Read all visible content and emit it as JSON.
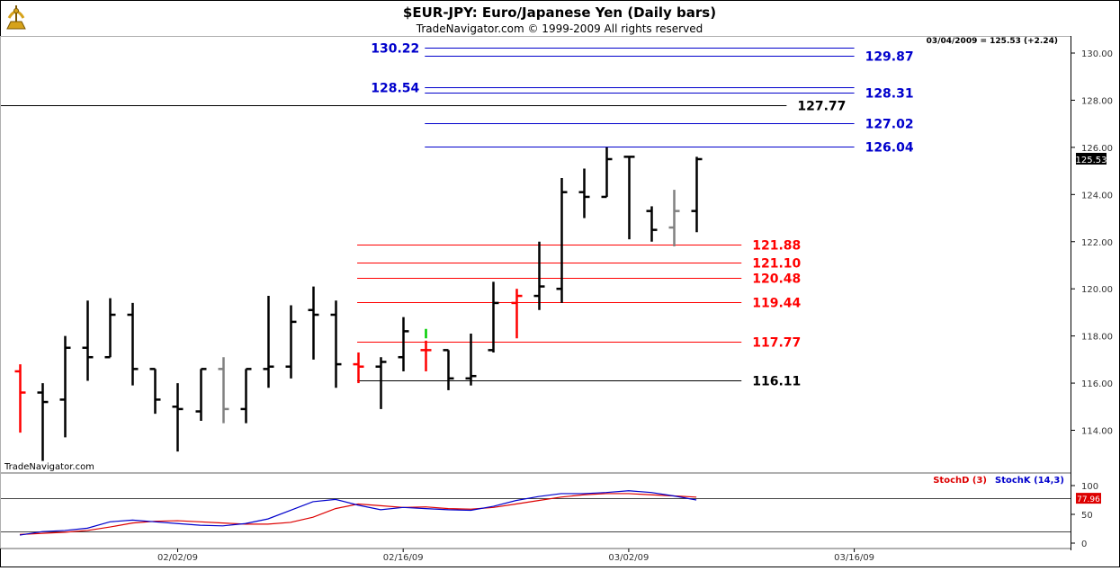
{
  "header": {
    "title": "$EUR-JPY:  Euro/Japanese Yen  (Daily bars)",
    "copyright": "TradeNavigator.com © 1999-2009 All rights reserved",
    "quote": "03/04/2009 = 125.53 (+2.24)",
    "watermark": "TradeNavigator.com"
  },
  "colors": {
    "up_bar": "#000000",
    "down_bar": "#000000",
    "red_bar": "#ff0000",
    "gray_bar": "#808080",
    "green_tick": "#00cc00",
    "blue_level": "#0000cc",
    "red_level": "#ff0000",
    "black_level": "#000000",
    "stoch_d": "#dd0000",
    "stoch_k": "#0000cc"
  },
  "chart_data": {
    "type": "ohlc",
    "title": "$EUR-JPY:  Euro/Japanese Yen  (Daily bars)",
    "ylim": [
      112.6,
      131.0
    ],
    "y_ticks": [
      "130.00",
      "128.00",
      "126.00",
      "124.00",
      "122.00",
      "120.00",
      "118.00",
      "116.00",
      "114.00"
    ],
    "x_ticks": [
      {
        "label": "02/02/09",
        "bar": 7
      },
      {
        "label": "02/16/09",
        "bar": 17
      },
      {
        "label": "03/02/09",
        "bar": 27
      },
      {
        "label": "03/16/09",
        "bar": 37
      }
    ],
    "last_price_label": "125.53",
    "bars": [
      {
        "o": 116.5,
        "h": 116.8,
        "l": 113.9,
        "c": 115.6,
        "color": "red"
      },
      {
        "o": 115.6,
        "h": 116.0,
        "l": 112.7,
        "c": 115.2,
        "color": "black"
      },
      {
        "o": 115.3,
        "h": 118.0,
        "l": 113.7,
        "c": 117.5,
        "color": "black"
      },
      {
        "o": 117.5,
        "h": 119.5,
        "l": 116.1,
        "c": 117.1,
        "color": "black"
      },
      {
        "o": 117.1,
        "h": 119.6,
        "l": 117.1,
        "c": 118.9,
        "color": "black"
      },
      {
        "o": 118.9,
        "h": 119.4,
        "l": 115.9,
        "c": 116.6,
        "color": "black"
      },
      {
        "o": 116.6,
        "h": 116.6,
        "l": 114.7,
        "c": 115.3,
        "color": "black"
      },
      {
        "o": 115.0,
        "h": 116.0,
        "l": 113.1,
        "c": 114.9,
        "color": "black"
      },
      {
        "o": 114.8,
        "h": 116.6,
        "l": 114.4,
        "c": 116.6,
        "color": "black"
      },
      {
        "o": 116.6,
        "h": 117.1,
        "l": 114.3,
        "c": 114.9,
        "color": "gray"
      },
      {
        "o": 114.9,
        "h": 116.6,
        "l": 114.3,
        "c": 116.6,
        "color": "black"
      },
      {
        "o": 116.6,
        "h": 119.7,
        "l": 115.8,
        "c": 116.7,
        "color": "black"
      },
      {
        "o": 116.7,
        "h": 119.3,
        "l": 116.2,
        "c": 118.6,
        "color": "black"
      },
      {
        "o": 119.1,
        "h": 120.1,
        "l": 117.0,
        "c": 118.9,
        "color": "black"
      },
      {
        "o": 118.9,
        "h": 119.5,
        "l": 115.8,
        "c": 116.8,
        "color": "black"
      },
      {
        "o": 116.8,
        "h": 117.3,
        "l": 116.0,
        "c": 116.7,
        "color": "red"
      },
      {
        "o": 116.7,
        "h": 117.1,
        "l": 114.9,
        "c": 116.9,
        "color": "black"
      },
      {
        "o": 117.1,
        "h": 118.8,
        "l": 116.5,
        "c": 118.2,
        "color": "black"
      },
      {
        "o": 117.4,
        "h": 117.8,
        "l": 116.5,
        "c": 117.4,
        "color": "red",
        "green_tick": 118.3
      },
      {
        "o": 117.4,
        "h": 117.4,
        "l": 115.7,
        "c": 116.2,
        "color": "black"
      },
      {
        "o": 116.2,
        "h": 118.1,
        "l": 115.9,
        "c": 116.3,
        "color": "black"
      },
      {
        "o": 117.4,
        "h": 120.3,
        "l": 117.3,
        "c": 119.4,
        "color": "black"
      },
      {
        "o": 119.4,
        "h": 120.0,
        "l": 117.9,
        "c": 119.7,
        "color": "red"
      },
      {
        "o": 119.7,
        "h": 122.0,
        "l": 119.1,
        "c": 120.1,
        "color": "black"
      },
      {
        "o": 120.0,
        "h": 124.7,
        "l": 119.4,
        "c": 124.1,
        "color": "black"
      },
      {
        "o": 124.1,
        "h": 125.1,
        "l": 123.0,
        "c": 123.9,
        "color": "black"
      },
      {
        "o": 123.9,
        "h": 126.0,
        "l": 123.9,
        "c": 125.5,
        "color": "black"
      },
      {
        "o": 125.6,
        "h": 125.6,
        "l": 122.1,
        "c": 125.6,
        "color": "black"
      },
      {
        "o": 123.3,
        "h": 123.5,
        "l": 122.0,
        "c": 122.5,
        "color": "black",
        "green_tick": 123.5
      },
      {
        "o": 122.6,
        "h": 124.2,
        "l": 121.8,
        "c": 123.3,
        "color": "gray"
      },
      {
        "o": 123.3,
        "h": 125.6,
        "l": 122.4,
        "c": 125.5,
        "color": "black"
      }
    ],
    "levels": [
      {
        "value": 129.87,
        "label": "129.87",
        "color": "blue",
        "bar_from": 18,
        "bar_to": 37
      },
      {
        "value": 128.31,
        "label": "128.31",
        "color": "blue",
        "bar_from": 18,
        "bar_to": 37
      },
      {
        "value": 127.02,
        "label": "127.02",
        "color": "blue",
        "bar_from": 18,
        "bar_to": 37
      },
      {
        "value": 126.04,
        "label": "126.04",
        "color": "blue",
        "bar_from": 18,
        "bar_to": 37
      },
      {
        "value": 130.22,
        "label": "130.22",
        "color": "blue",
        "bar_from": 18,
        "bar_to": 37,
        "label_left": true
      },
      {
        "value": 128.54,
        "label": "128.54",
        "color": "blue",
        "bar_from": 18,
        "bar_to": 37,
        "label_left": true
      },
      {
        "value": 127.77,
        "label": "127.77",
        "color": "black",
        "bar_from": -1,
        "bar_to": 34
      },
      {
        "value": 121.88,
        "label": "121.88",
        "color": "red",
        "bar_from": 15,
        "bar_to": 32
      },
      {
        "value": 121.1,
        "label": "121.10",
        "color": "red",
        "bar_from": 15,
        "bar_to": 32
      },
      {
        "value": 120.48,
        "label": "120.48",
        "color": "red",
        "bar_from": 15,
        "bar_to": 32
      },
      {
        "value": 119.44,
        "label": "119.44",
        "color": "red",
        "bar_from": 15,
        "bar_to": 32
      },
      {
        "value": 117.77,
        "label": "117.77",
        "color": "red",
        "bar_from": 15,
        "bar_to": 32
      },
      {
        "value": 116.11,
        "label": "116.11",
        "color": "black",
        "bar_from": 15,
        "bar_to": 32
      }
    ],
    "stochastic": {
      "ylim": [
        -10,
        110
      ],
      "y_ticks": [
        "100",
        "50",
        "0"
      ],
      "ref_lines": [
        77.96,
        20
      ],
      "last_value_label": "77.96",
      "series": [
        {
          "name": "StochD (3)",
          "color": "red",
          "values": [
            15,
            17,
            19,
            22,
            28,
            35,
            38,
            39,
            37,
            35,
            33,
            33,
            36,
            45,
            60,
            68,
            65,
            62,
            63,
            60,
            59,
            62,
            68,
            74,
            80,
            84,
            86,
            86,
            84,
            82,
            80
          ]
        },
        {
          "name": "StochK (14,3)",
          "color": "blue",
          "values": [
            14,
            20,
            22,
            26,
            37,
            40,
            37,
            34,
            31,
            30,
            34,
            42,
            57,
            72,
            76,
            66,
            58,
            62,
            60,
            58,
            57,
            64,
            74,
            81,
            86,
            86,
            88,
            91,
            88,
            82,
            75
          ]
        }
      ]
    }
  }
}
